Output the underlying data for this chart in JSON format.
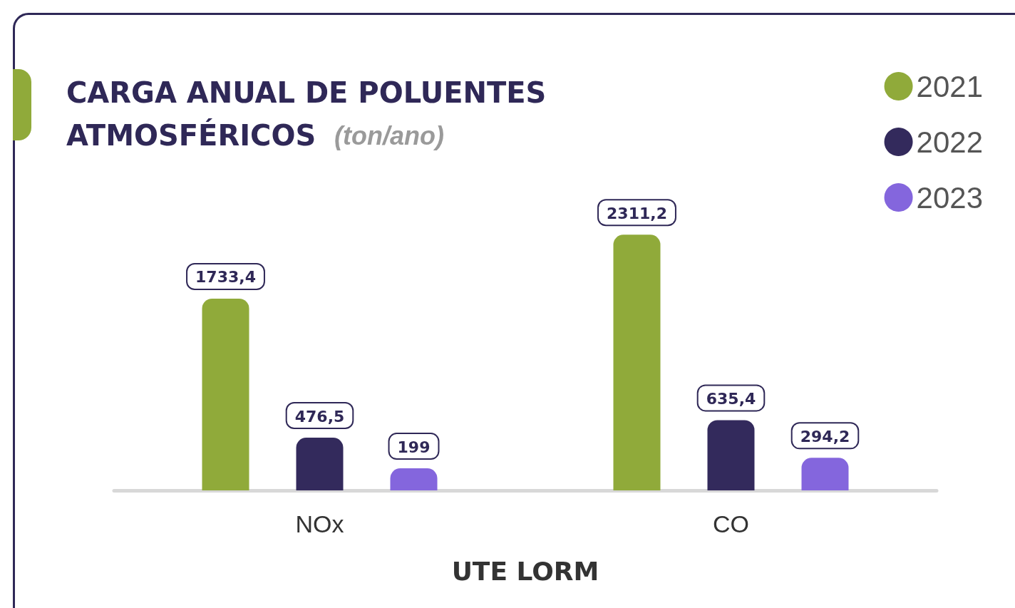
{
  "chart_data": {
    "type": "bar",
    "title": "CARGA ANUAL DE POLUENTES ATMOSFÉRICOS",
    "subtitle": "(ton/ano)",
    "xlabel": "UTE LORM",
    "categories": [
      "NOx",
      "CO"
    ],
    "series": [
      {
        "name": "2021",
        "color": "#90aa3a",
        "values": [
          1733.4,
          2311.2
        ],
        "value_labels": [
          "1733,4",
          "2311,2"
        ]
      },
      {
        "name": "2022",
        "color": "#332a5c",
        "values": [
          476.5,
          635.4
        ],
        "value_labels": [
          "476,5",
          "635,4"
        ]
      },
      {
        "name": "2023",
        "color": "#8466dd",
        "values": [
          199,
          294.2
        ],
        "value_labels": [
          "199",
          "294,2"
        ]
      }
    ],
    "legend": "top right"
  }
}
